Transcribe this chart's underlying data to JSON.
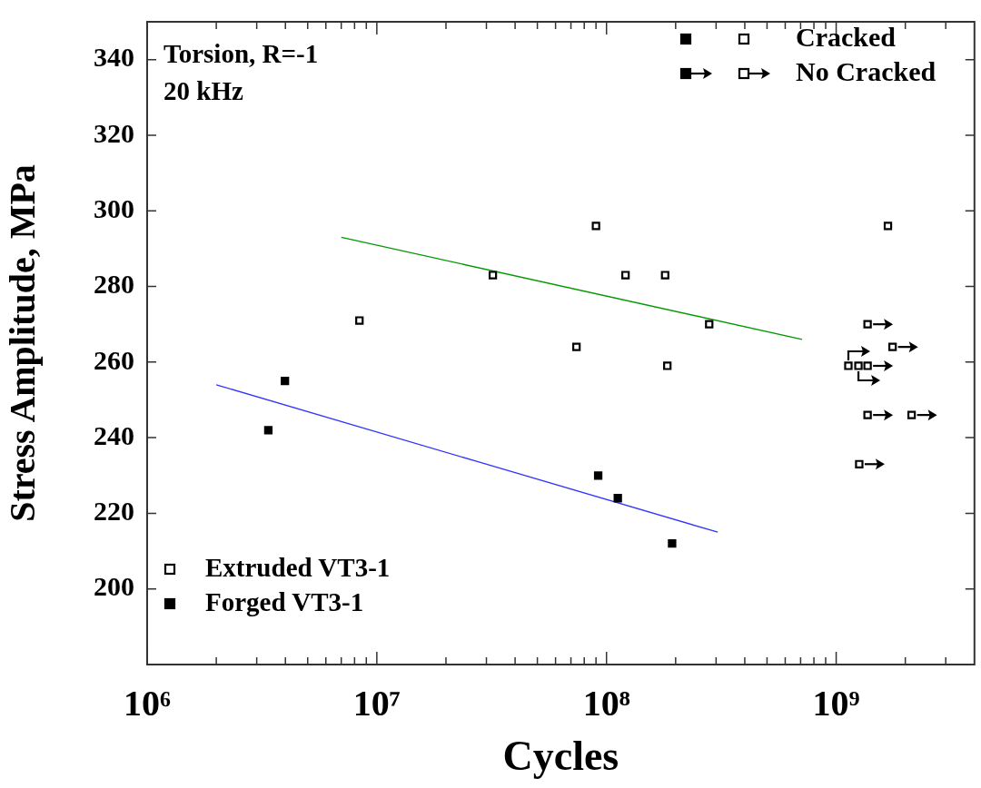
{
  "chart_data": {
    "type": "scatter",
    "title": "Torsion, R=-1",
    "subtitle": "20 kHz",
    "xlabel": "Cycles",
    "ylabel": "Stress Amplitude, MPa",
    "log": "x",
    "legend": "bottom left",
    "annotations": [
      "Cracked",
      "No Cracked"
    ],
    "xlim": [
      1000000,
      4000000000
    ],
    "xticks": [
      {
        "value": 1000000,
        "label": "10⁶"
      },
      {
        "value": 2000000,
        "label": null
      },
      {
        "value": 3000000,
        "label": null
      },
      {
        "value": 4000000,
        "label": null
      },
      {
        "value": 5000000,
        "label": null
      },
      {
        "value": 6000000,
        "label": null
      },
      {
        "value": 7000000,
        "label": null
      },
      {
        "value": 8000000,
        "label": null
      },
      {
        "value": 9000000,
        "label": null
      },
      {
        "value": 10000000,
        "label": "10⁷"
      },
      {
        "value": 20000000,
        "label": null
      },
      {
        "value": 30000000,
        "label": null
      },
      {
        "value": 40000000,
        "label": null
      },
      {
        "value": 50000000,
        "label": null
      },
      {
        "value": 60000000,
        "label": null
      },
      {
        "value": 70000000,
        "label": null
      },
      {
        "value": 80000000,
        "label": null
      },
      {
        "value": 90000000,
        "label": null
      },
      {
        "value": 100000000,
        "label": "10⁸"
      },
      {
        "value": 200000000,
        "label": null
      },
      {
        "value": 300000000,
        "label": null
      },
      {
        "value": 400000000,
        "label": null
      },
      {
        "value": 500000000,
        "label": null
      },
      {
        "value": 600000000,
        "label": null
      },
      {
        "value": 700000000,
        "label": null
      },
      {
        "value": 800000000,
        "label": null
      },
      {
        "value": 900000000,
        "label": null
      },
      {
        "value": 1000000000,
        "label": "10⁹"
      },
      {
        "value": 2000000000,
        "label": null
      },
      {
        "value": 3000000000,
        "label": null
      }
    ],
    "ylim": [
      180,
      350
    ],
    "yticks": [
      200,
      220,
      240,
      260,
      280,
      300,
      320,
      340
    ],
    "series": [
      {
        "name": "Extruded VT3-1",
        "marker": "square",
        "color": "#000000",
        "x": [
          8400000,
          32000000,
          90000000,
          121000000,
          180000000,
          280000000,
          74000000,
          184000000,
          1680000000
        ],
        "values": [
          271,
          283,
          296,
          283,
          283,
          270,
          264,
          259,
          296
        ]
      },
      {
        "name": "Forged VT3-1",
        "marker": "square",
        "color": "#000000",
        "x": [
          3370000,
          3980000,
          92000000,
          112000000,
          193000000
        ],
        "values": [
          242,
          255,
          230,
          224,
          212
        ]
      },
      {
        "marker": "square",
        "color": "#000000",
        "x": [
          1370000000,
          1760000000,
          1130000000,
          1250000000,
          1370000000,
          1370000000,
          2130000000,
          1260000000
        ],
        "values": [
          270,
          264,
          259,
          259,
          259,
          246,
          246,
          233
        ]
      },
      {
        "type": "line",
        "color": "#009900",
        "x": [
          7000000,
          710000000
        ],
        "values": [
          293,
          266
        ]
      },
      {
        "type": "line",
        "color": "#3333ff",
        "x": [
          2000000,
          305000000
        ],
        "values": [
          254,
          215
        ]
      }
    ]
  }
}
